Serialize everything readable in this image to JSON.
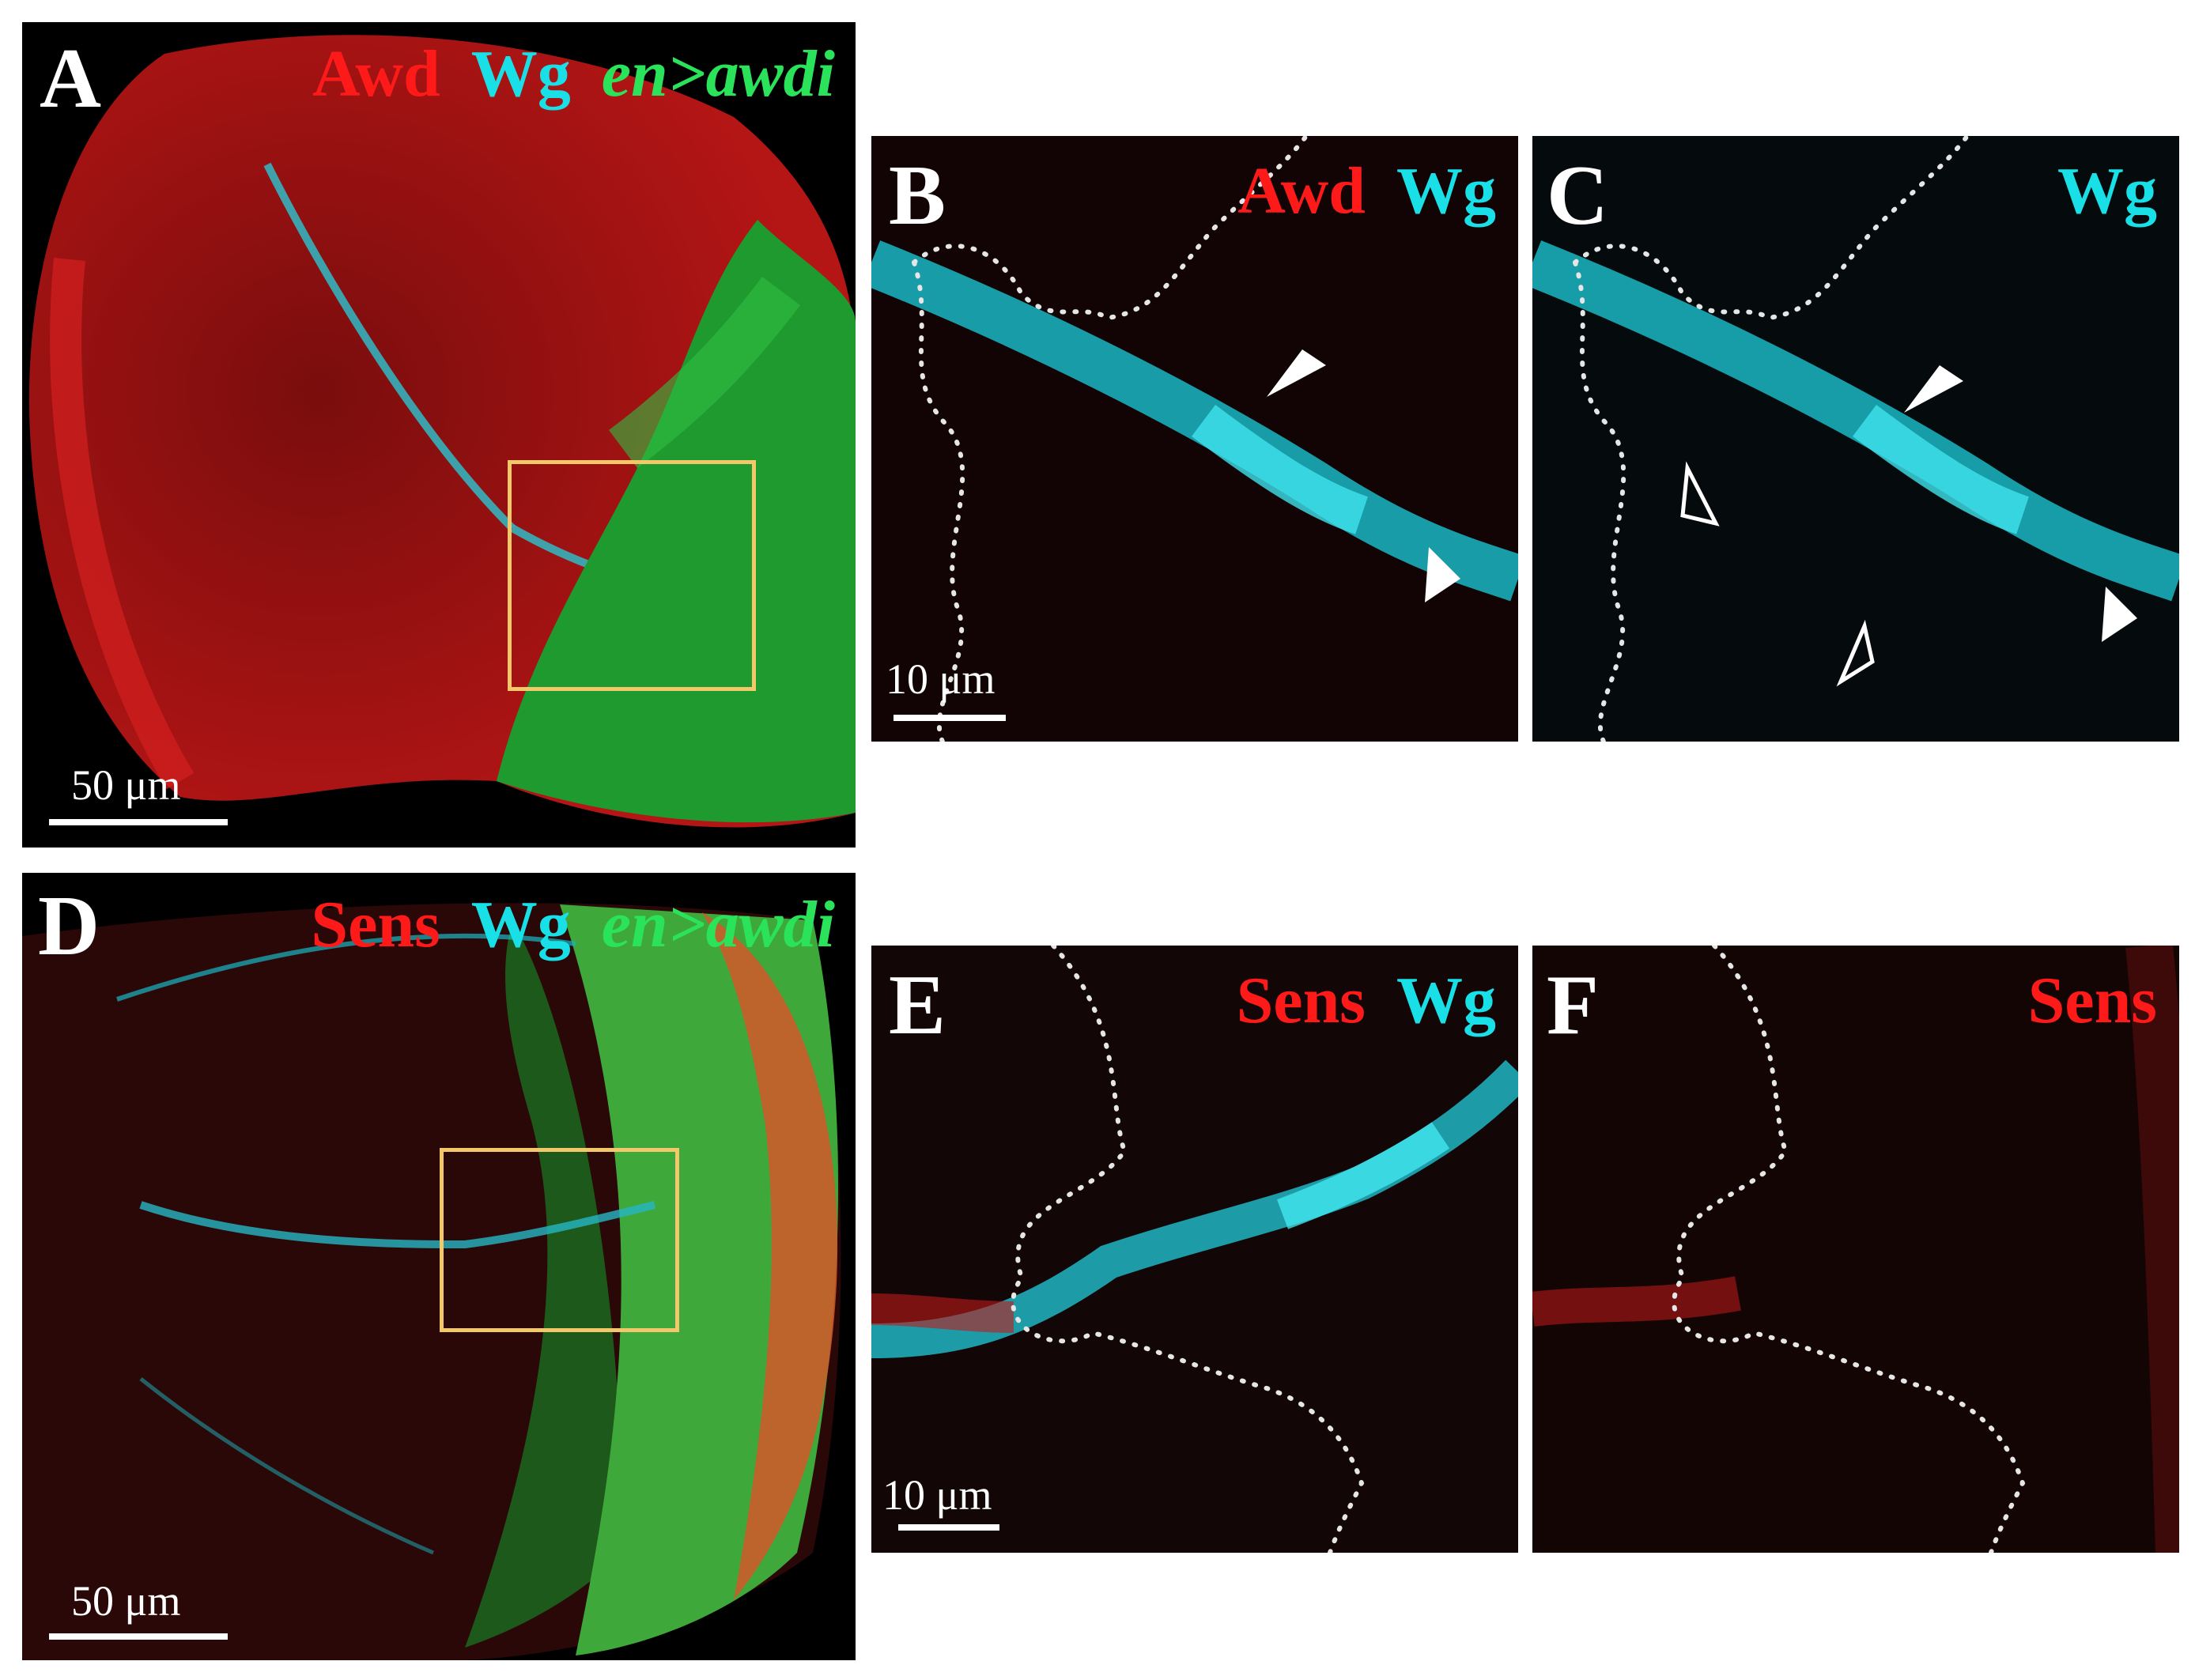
{
  "colors": {
    "red": "#ff1a1a",
    "cyan": "#19e0e6",
    "green": "#2be35a",
    "box": "#f2c86a"
  },
  "panels": {
    "A": {
      "letter": "A",
      "labels": [
        "Awd",
        "Wg",
        "en>awdi"
      ],
      "scale": "50 μm"
    },
    "B": {
      "letter": "B",
      "labels": [
        "Awd",
        "Wg"
      ],
      "scale": "10 μm"
    },
    "C": {
      "letter": "C",
      "labels": [
        "Wg"
      ]
    },
    "D": {
      "letter": "D",
      "labels": [
        "Sens",
        "Wg",
        "en>awdi"
      ],
      "scale": "50 μm"
    },
    "E": {
      "letter": "E",
      "labels": [
        "Sens",
        "Wg"
      ],
      "scale": "10 μm"
    },
    "F": {
      "letter": "F",
      "labels": [
        "Sens"
      ]
    }
  }
}
